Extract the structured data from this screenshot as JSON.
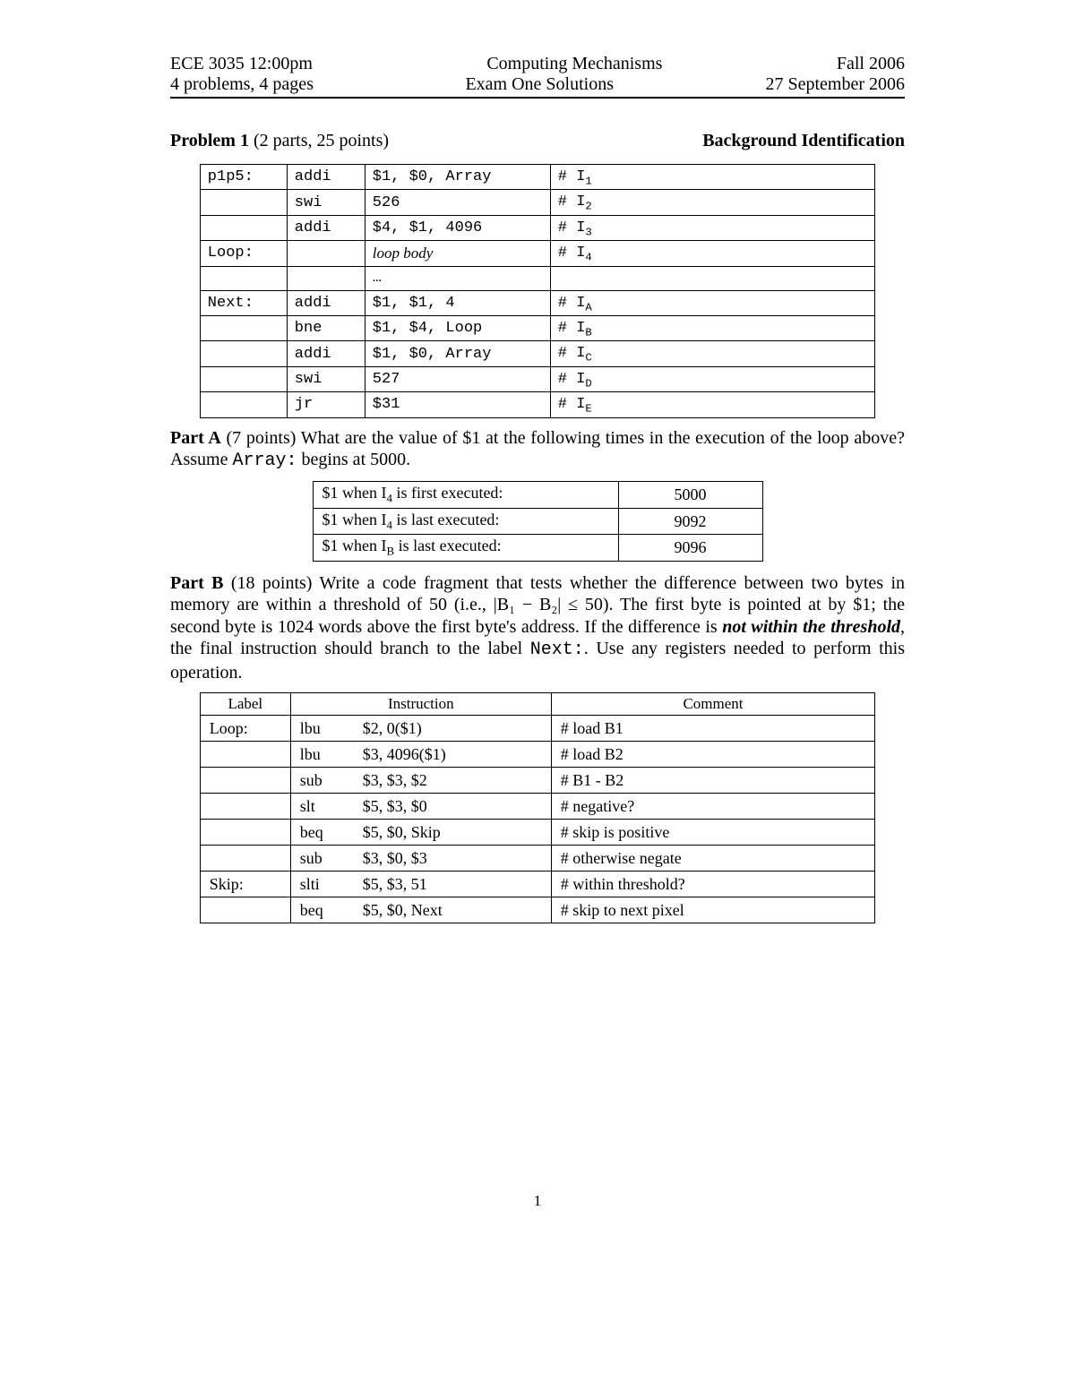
{
  "header": {
    "row1": {
      "left": "ECE 3035 12:00pm",
      "center": "Computing Mechanisms",
      "right": "Fall 2006"
    },
    "row2": {
      "left": "4 problems, 4 pages",
      "center": "Exam One Solutions",
      "right": "27 September 2006"
    }
  },
  "problem": {
    "title_bold": "Problem 1",
    "title_rest": " (2 parts, 25 points)",
    "right": "Background Identification"
  },
  "code_table": {
    "rows": [
      {
        "label": "p1p5:",
        "op": "addi",
        "args": "$1, $0, Array",
        "tag_prefix": "# I",
        "tag_sub": "1"
      },
      {
        "label": "",
        "op": "swi",
        "args": "526",
        "tag_prefix": "# I",
        "tag_sub": "2"
      },
      {
        "label": "",
        "op": "addi",
        "args": "$4, $1, 4096",
        "tag_prefix": "# I",
        "tag_sub": "3"
      },
      {
        "label": "Loop:",
        "op": "",
        "args": "loop body",
        "tag_prefix": "# I",
        "tag_sub": "4",
        "args_italic": true
      },
      {
        "label": "",
        "op": "",
        "args": "…",
        "tag_prefix": "",
        "tag_sub": ""
      },
      {
        "label": "Next:",
        "op": "addi",
        "args": "$1, $1, 4",
        "tag_prefix": "# I",
        "tag_sub": "A"
      },
      {
        "label": "",
        "op": "bne",
        "args": "$1, $4, Loop",
        "tag_prefix": "# I",
        "tag_sub": "B"
      },
      {
        "label": "",
        "op": "addi",
        "args": "$1, $0, Array",
        "tag_prefix": "# I",
        "tag_sub": "C"
      },
      {
        "label": "",
        "op": "swi",
        "args": "527",
        "tag_prefix": "# I",
        "tag_sub": "D"
      },
      {
        "label": "",
        "op": "jr",
        "args": "$31",
        "tag_prefix": "# I",
        "tag_sub": "E"
      }
    ]
  },
  "partA": {
    "lead_bold": "Part A",
    "lead_rest": " (7 points) What are the value of $1 at the following times in the execution of the loop above? Assume ",
    "lead_mono": "Array:",
    "lead_tail": " begins at 5000.",
    "rows": [
      {
        "desc_pre": "$1 when I",
        "desc_sub": "4",
        "desc_post": " is first executed:",
        "val": "5000"
      },
      {
        "desc_pre": "$1 when I",
        "desc_sub": "4",
        "desc_post": " is last executed:",
        "val": "9092"
      },
      {
        "desc_pre": "$1 when I",
        "desc_sub": "B",
        "desc_post": " is last executed:",
        "val": "9096"
      }
    ]
  },
  "partB": {
    "lead_bold": "Part B",
    "text1": " (18 points) Write a code fragment that tests whether the difference between two bytes in memory are within a threshold of 50 (i.e., ",
    "abs_expr": "|B₁ − B₂| ≤ 50",
    "text2": "). The first byte is pointed at by $1; the second byte is 1024 words above the first byte's address. If the difference is ",
    "emph": "not within the threshold",
    "text3": ", the final instruction should branch to the label ",
    "mono": "Next:",
    "text4": ". Use any registers needed to perform this operation.",
    "headers": {
      "label": "Label",
      "instr": "Instruction",
      "comment": "Comment"
    },
    "rows": [
      {
        "label": "Loop:",
        "op": "lbu",
        "args": "$2, 0($1)",
        "comment": "# load B1"
      },
      {
        "label": "",
        "op": "lbu",
        "args": "$3, 4096($1)",
        "comment": "# load B2"
      },
      {
        "label": "",
        "op": "sub",
        "args": "$3, $3, $2",
        "comment": "# B1 - B2"
      },
      {
        "label": "",
        "op": "slt",
        "args": "$5, $3, $0",
        "comment": "# negative?"
      },
      {
        "label": "",
        "op": "beq",
        "args": "$5, $0, Skip",
        "comment": "# skip is positive"
      },
      {
        "label": "",
        "op": "sub",
        "args": "$3, $0, $3",
        "comment": "# otherwise negate"
      },
      {
        "label": "Skip:",
        "op": "slti",
        "args": "$5, $3, 51",
        "comment": "# within threshold?"
      },
      {
        "label": "",
        "op": "beq",
        "args": "$5, $0, Next",
        "comment": "# skip to next pixel"
      }
    ]
  },
  "page_number": "1"
}
